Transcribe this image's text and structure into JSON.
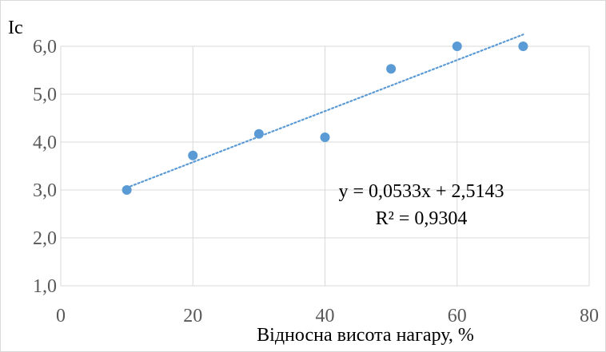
{
  "chart_data": {
    "type": "scatter",
    "title": "",
    "xlabel": "Відносна висота нагару, %",
    "ylabel": "Ic",
    "xlim": [
      0,
      80
    ],
    "ylim": [
      1.0,
      6.0
    ],
    "x_ticks": [
      "0",
      "20",
      "40",
      "60",
      "80"
    ],
    "y_ticks": [
      "1,0",
      "2,0",
      "3,0",
      "4,0",
      "5,0",
      "6,0"
    ],
    "grid": true,
    "legend": "none",
    "series": [
      {
        "x": [
          10,
          20,
          30,
          40,
          50,
          60,
          70
        ],
        "y": [
          3.0,
          3.72,
          4.17,
          4.1,
          5.53,
          6.0,
          6.0
        ],
        "color": "#5b9bd5"
      }
    ],
    "trendline": {
      "type": "linear",
      "slope": 0.0533,
      "intercept": 2.5143,
      "x_range": [
        10,
        70
      ],
      "color": "#5b9bd5",
      "style": "dotted",
      "equation": "y = 0,0533x + 2,5143",
      "r_squared": "R² = 0,9304"
    }
  }
}
